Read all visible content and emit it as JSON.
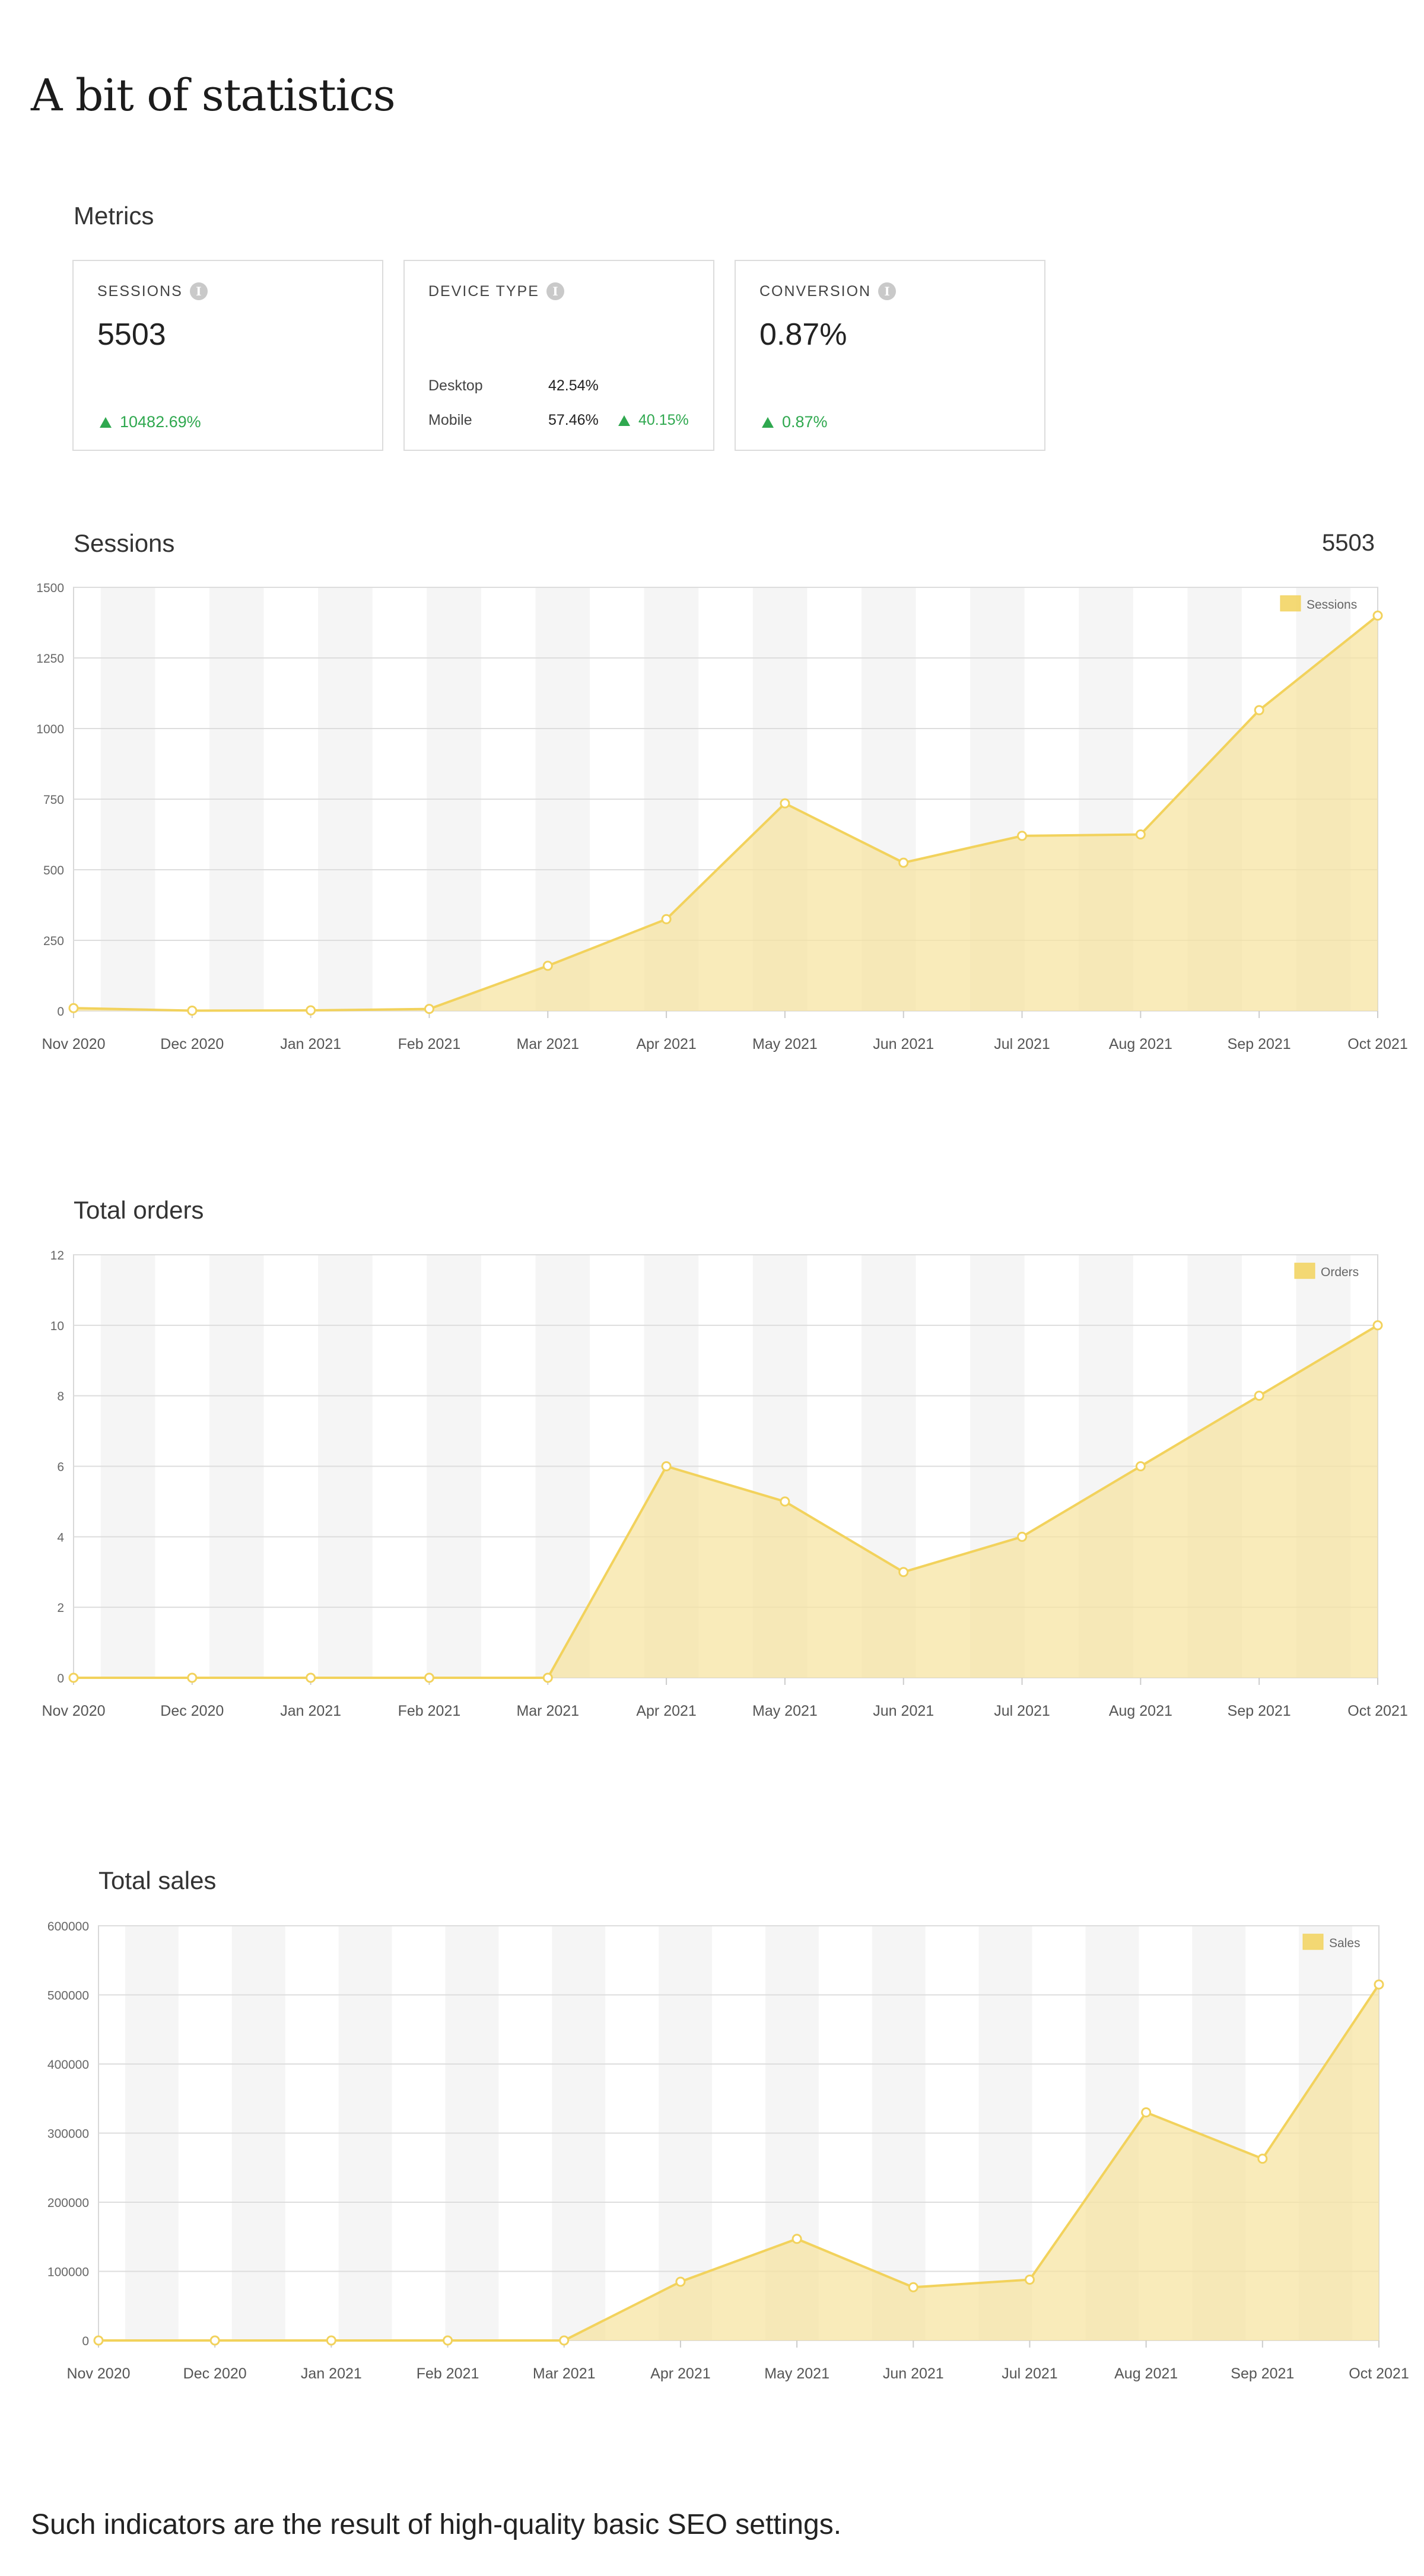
{
  "page": {
    "title": "A bit of statistics",
    "footer": "Such indicators are the result of high-quality basic SEO settings."
  },
  "metrics": {
    "title": "Metrics",
    "sessions": {
      "label": "SESSIONS",
      "value": "5503",
      "change": "10482.69%"
    },
    "device_type": {
      "label": "DEVICE TYPE",
      "rows": [
        {
          "name": "Desktop",
          "value": "42.54%",
          "change": ""
        },
        {
          "name": "Mobile",
          "value": "57.46%",
          "change": "40.15%"
        }
      ]
    },
    "conversion": {
      "label": "CONVERSION",
      "value": "0.87%",
      "change": "0.87%"
    }
  },
  "colors": {
    "accent": "#f2d25c",
    "fill": "#f6e3a0",
    "positive": "#2fa84f"
  },
  "chart_data": [
    {
      "type": "area",
      "title": "Sessions",
      "summary": "5503",
      "categories": [
        "Nov 2020",
        "Dec 2020",
        "Jan 2021",
        "Feb 2021",
        "Mar 2021",
        "Apr 2021",
        "May 2021",
        "Jun 2021",
        "Jul 2021",
        "Aug 2021",
        "Sep 2021",
        "Oct 2021"
      ],
      "series": [
        {
          "name": "Sessions",
          "values": [
            10,
            1,
            2,
            7,
            160,
            325,
            735,
            525,
            620,
            625,
            1065,
            1400
          ]
        }
      ],
      "yticks": [
        0,
        250,
        500,
        750,
        1000,
        1250,
        1500
      ],
      "ylim": [
        0,
        1500
      ],
      "legend": "top-right",
      "grid": true
    },
    {
      "type": "area",
      "title": "Total orders",
      "categories": [
        "Nov 2020",
        "Dec 2020",
        "Jan 2021",
        "Feb 2021",
        "Mar 2021",
        "Apr 2021",
        "May 2021",
        "Jun 2021",
        "Jul 2021",
        "Aug 2021",
        "Sep 2021",
        "Oct 2021"
      ],
      "series": [
        {
          "name": "Orders",
          "values": [
            0,
            0,
            0,
            0,
            0,
            6,
            5,
            3,
            4,
            6,
            8,
            10
          ]
        }
      ],
      "yticks": [
        0,
        2,
        4,
        6,
        8,
        10,
        12
      ],
      "ylim": [
        0,
        12
      ],
      "legend": "top-right",
      "grid": true
    },
    {
      "type": "area",
      "title": "Total sales",
      "categories": [
        "Nov 2020",
        "Dec 2020",
        "Jan 2021",
        "Feb 2021",
        "Mar 2021",
        "Apr 2021",
        "May 2021",
        "Jun 2021",
        "Jul 2021",
        "Aug 2021",
        "Sep 2021",
        "Oct 2021"
      ],
      "series": [
        {
          "name": "Sales",
          "values": [
            0,
            0,
            0,
            0,
            0,
            85000,
            147000,
            77000,
            88000,
            330000,
            263000,
            515000
          ]
        }
      ],
      "yticks": [
        0,
        100000,
        200000,
        300000,
        400000,
        500000,
        600000
      ],
      "ylim": [
        0,
        600000
      ],
      "legend": "top-right",
      "grid": true
    }
  ]
}
